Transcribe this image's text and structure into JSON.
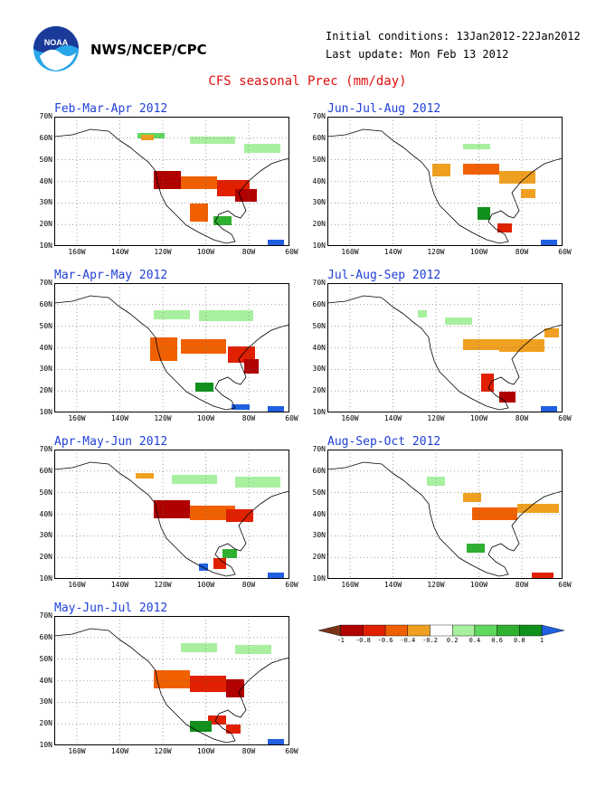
{
  "header": {
    "agency": "NWS/NCEP/CPC",
    "initial_conditions": "Initial conditions: 13Jan2012-22Jan2012",
    "last_update": "Last update: Mon Feb 13 2012",
    "title": "CFS seasonal Prec (mm/day)"
  },
  "logo": {
    "icon": "noaa-logo-icon",
    "colors": [
      "#1a3a9a",
      "#29a6e8",
      "#ffffff"
    ]
  },
  "axes": {
    "lat_labels": [
      "70N",
      "60N",
      "50N",
      "40N",
      "30N",
      "20N",
      "10N"
    ],
    "lon_labels": [
      "160W",
      "140W",
      "120W",
      "100W",
      "80W",
      "60W"
    ]
  },
  "panels": [
    {
      "title": "Feb-Mar-Apr 2012"
    },
    {
      "title": "Jun-Jul-Aug 2012"
    },
    {
      "title": "Mar-Apr-May 2012"
    },
    {
      "title": "Jul-Aug-Sep 2012"
    },
    {
      "title": "Apr-May-Jun 2012"
    },
    {
      "title": "Aug-Sep-Oct 2012"
    },
    {
      "title": "May-Jun-Jul 2012"
    }
  ],
  "colorbar": {
    "labels": [
      "-1",
      "-0.8",
      "-0.6",
      "-0.4",
      "-0.2",
      "0.2",
      "0.4",
      "0.6",
      "0.8",
      "1"
    ],
    "colors": [
      "#7a3218",
      "#b00000",
      "#e02000",
      "#f06000",
      "#f0a020",
      "#ffffff",
      "#a8f0a0",
      "#60d860",
      "#30b030",
      "#10901a",
      "#2060e0"
    ]
  }
}
